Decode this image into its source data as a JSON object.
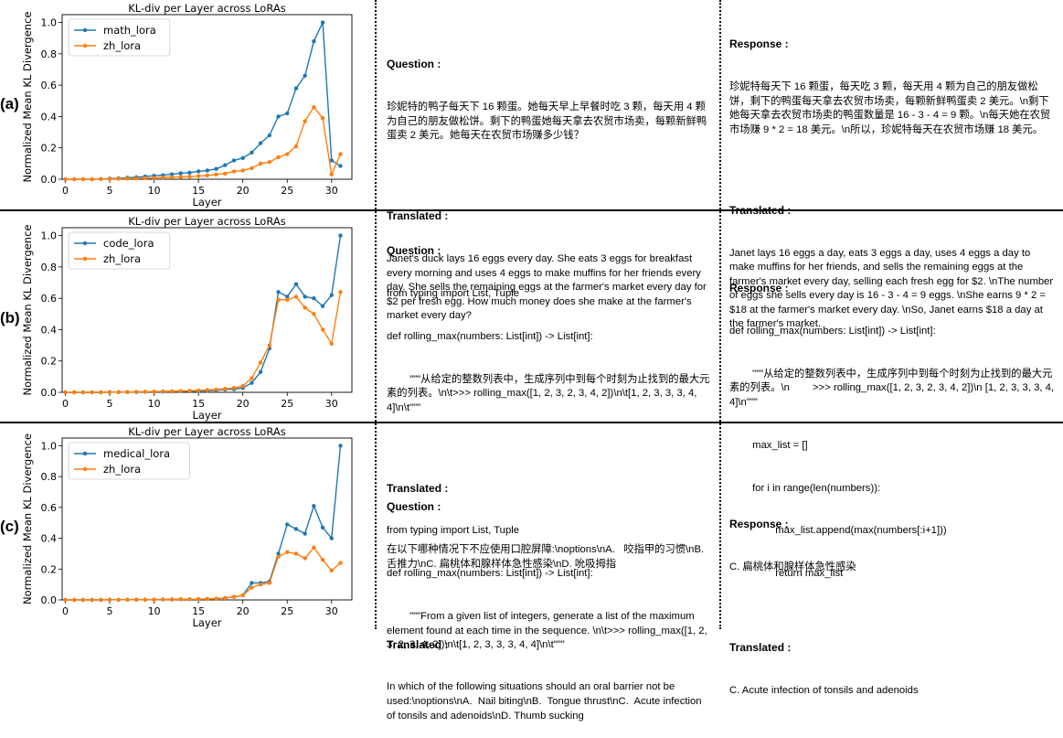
{
  "rows": [
    {
      "label": "(a)",
      "question_header": "Question :",
      "question": "珍妮特的鸭子每天下 16 颗蛋。她每天早上早餐时吃 3 颗，每天用 4 颗为自己的朋友做松饼。剩下的鸭蛋她每天拿去农贸市场卖，每颗新鲜鸭蛋卖 2 美元。她每天在农贸市场赚多少钱？",
      "translated_header": "Translated :",
      "translated_question": "Janet's duck lays 16 eggs every day. She eats 3 eggs for breakfast every morning and uses 4 eggs to make muffins for her friends every day. She sells the remaining eggs at the farmer's market every day for $2 per fresh egg. How much money does she make at the farmer's market every day?",
      "response_header": "Response :",
      "response": "珍妮特每天下 16 颗蛋，每天吃 3 颗，每天用 4 颗为自己的朋友做松饼，剩下的鸭蛋每天拿去农贸市场卖，每颗新鲜鸭蛋卖 2 美元。\\n剩下她每天拿去农贸市场卖的鸭蛋数量是 16 - 3 - 4 = 9 颗。\\n每天她在农贸市场赚 9 * 2 = 18 美元。\\n所以，珍妮特每天在农贸市场赚 18 美元。",
      "response_translated_header": "Translated :",
      "response_translated": "Janet lays 16 eggs a day, eats 3 eggs a day, uses 4 eggs a day to make muffins for her friends, and sells the remaining eggs at the farmer's market every day, selling each fresh egg for $2. \\nThe number of eggs she sells every day is 16 - 3 - 4 = 9 eggs. \\nShe earns 9 * 2 = $18 at the farmer's market every day. \\nSo, Janet earns $18 a day at the farmer's market."
    },
    {
      "label": "(b)",
      "question_header": "Question :",
      "question_lines": [
        "from typing import List, Tuple",
        "def rolling_max(numbers: List[int]) -> List[int]:",
        "        \"\"\"从给定的整数列表中，生成序列中到每个时刻为止找到的最大元素的列表。\\n\\t>>> rolling_max([1, 2, 3, 2, 3, 4, 2])\\n\\t[1, 2, 3, 3, 3, 4, 4]\\n\\t\"\"\""
      ],
      "translated_header": "Translated :",
      "translated_lines": [
        "from typing import List, Tuple",
        "def rolling_max(numbers: List[int]) -> List[int]:",
        "        \"\"\"From a given list of integers, generate a list of the maximum element found at each time in the sequence. \\n\\t>>> rolling_max([1, 2, 3, 2, 3, 4, 2])\\n\\t[1, 2, 3, 3, 3, 4, 4]\\n\\t\"\"\""
      ],
      "response_header": "Response :",
      "response_lines": [
        "def rolling_max(numbers: List[int]) -> List[int]:",
        "        \"\"\"从给定的整数列表中，生成序列中到每个时刻为止找到的最大元素的列表。\\n        >>> rolling_max([1, 2, 3, 2, 3, 4, 2])\\n [1, 2, 3, 3, 3, 4, 4]\\n\"\"\"",
        "        max_list = []",
        "        for i in range(len(numbers)):",
        "                max_list.append(max(numbers[:i+1]))",
        "                return max_list"
      ]
    },
    {
      "label": "(c)",
      "question_header": "Question :",
      "question": "在以下哪种情况下不应使用口腔屏障:\\noptions\\nA.   咬指甲的习惯\\nB. 舌推力\\nC. 扁桃体和腺样体急性感染\\nD. 吮吸拇指",
      "translated_header": "Translated :",
      "translated_question": "In which of the following situations should an oral barrier not be used:\\noptions\\nA.  Nail biting\\nB.  Tongue thrust\\nC.  Acute infection of tonsils and adenoids\\nD. Thumb sucking",
      "response_header": "Response :",
      "response": "C. 扁桃体和腺样体急性感染",
      "response_translated_header": "Translated :",
      "response_translated": "C. Acute infection of tonsils and adenoids"
    }
  ],
  "colors": {
    "blue": "#1f77b4",
    "orange": "#ff7f0e"
  },
  "chart_data": [
    {
      "type": "line",
      "title": "KL-div per Layer across LoRAs",
      "xlabel": "Layer",
      "ylabel": "Normalized Mean KL Divergence",
      "xlim": [
        0,
        32
      ],
      "ylim": [
        0,
        1.05
      ],
      "xticks": [
        0,
        5,
        10,
        15,
        20,
        25,
        30
      ],
      "yticks": [
        0.0,
        0.2,
        0.4,
        0.6,
        0.8,
        1.0
      ],
      "legend": "top-left",
      "x": [
        0,
        1,
        2,
        3,
        4,
        5,
        6,
        7,
        8,
        9,
        10,
        11,
        12,
        13,
        14,
        15,
        16,
        17,
        18,
        19,
        20,
        21,
        22,
        23,
        24,
        25,
        26,
        27,
        28,
        29,
        30,
        31
      ],
      "series": [
        {
          "name": "math_lora",
          "color": "#1f77b4",
          "values": [
            0,
            0,
            0,
            0,
            0.002,
            0.004,
            0.006,
            0.01,
            0.013,
            0.018,
            0.022,
            0.026,
            0.032,
            0.038,
            0.042,
            0.05,
            0.056,
            0.066,
            0.09,
            0.12,
            0.135,
            0.17,
            0.23,
            0.28,
            0.4,
            0.42,
            0.58,
            0.66,
            0.88,
            1.0,
            0.12,
            0.085
          ]
        },
        {
          "name": "zh_lora",
          "color": "#ff7f0e",
          "values": [
            0,
            0,
            0,
            0,
            0.001,
            0.002,
            0.003,
            0.004,
            0.005,
            0.007,
            0.009,
            0.011,
            0.013,
            0.015,
            0.017,
            0.02,
            0.024,
            0.03,
            0.036,
            0.05,
            0.056,
            0.07,
            0.1,
            0.11,
            0.14,
            0.16,
            0.21,
            0.37,
            0.46,
            0.39,
            0.03,
            0.16
          ]
        }
      ]
    },
    {
      "type": "line",
      "title": "KL-div per Layer across LoRAs",
      "xlabel": "Layer",
      "ylabel": "Normalized Mean KL Divergence",
      "xlim": [
        0,
        32
      ],
      "ylim": [
        0,
        1.05
      ],
      "xticks": [
        0,
        5,
        10,
        15,
        20,
        25,
        30
      ],
      "yticks": [
        0.0,
        0.2,
        0.4,
        0.6,
        0.8,
        1.0
      ],
      "legend": "top-left",
      "x": [
        0,
        1,
        2,
        3,
        4,
        5,
        6,
        7,
        8,
        9,
        10,
        11,
        12,
        13,
        14,
        15,
        16,
        17,
        18,
        19,
        20,
        21,
        22,
        23,
        24,
        25,
        26,
        27,
        28,
        29,
        30,
        31
      ],
      "series": [
        {
          "name": "code_lora",
          "color": "#1f77b4",
          "values": [
            0,
            0,
            0,
            0,
            0,
            0.001,
            0.001,
            0.002,
            0.002,
            0.003,
            0.003,
            0.004,
            0.005,
            0.006,
            0.007,
            0.008,
            0.01,
            0.013,
            0.018,
            0.02,
            0.028,
            0.06,
            0.13,
            0.28,
            0.64,
            0.61,
            0.69,
            0.61,
            0.6,
            0.55,
            0.62,
            1.0
          ]
        },
        {
          "name": "zh_lora",
          "color": "#ff7f0e",
          "values": [
            0,
            0,
            0,
            0,
            0,
            0.001,
            0.001,
            0.002,
            0.003,
            0.004,
            0.005,
            0.006,
            0.007,
            0.008,
            0.01,
            0.012,
            0.015,
            0.018,
            0.022,
            0.028,
            0.04,
            0.09,
            0.19,
            0.3,
            0.59,
            0.59,
            0.61,
            0.54,
            0.5,
            0.4,
            0.31,
            0.64
          ]
        }
      ]
    },
    {
      "type": "line",
      "title": "KL-div per Layer across LoRAs",
      "xlabel": "Layer",
      "ylabel": "Normalized Mean KL Divergence",
      "xlim": [
        0,
        32
      ],
      "ylim": [
        0,
        1.05
      ],
      "xticks": [
        0,
        5,
        10,
        15,
        20,
        25,
        30
      ],
      "yticks": [
        0.0,
        0.2,
        0.4,
        0.6,
        0.8,
        1.0
      ],
      "legend": "top-left",
      "x": [
        0,
        1,
        2,
        3,
        4,
        5,
        6,
        7,
        8,
        9,
        10,
        11,
        12,
        13,
        14,
        15,
        16,
        17,
        18,
        19,
        20,
        21,
        22,
        23,
        24,
        25,
        26,
        27,
        28,
        29,
        30,
        31
      ],
      "series": [
        {
          "name": "medical_lora",
          "color": "#1f77b4",
          "values": [
            0,
            0,
            0,
            0,
            0,
            0.001,
            0.001,
            0.001,
            0.002,
            0.002,
            0.002,
            0.003,
            0.003,
            0.004,
            0.004,
            0.005,
            0.006,
            0.008,
            0.012,
            0.02,
            0.03,
            0.11,
            0.11,
            0.12,
            0.3,
            0.49,
            0.46,
            0.43,
            0.61,
            0.47,
            0.4,
            1.0
          ]
        },
        {
          "name": "zh_lora",
          "color": "#ff7f0e",
          "values": [
            0,
            0,
            0,
            0,
            0,
            0.001,
            0.001,
            0.001,
            0.002,
            0.002,
            0.002,
            0.003,
            0.003,
            0.004,
            0.004,
            0.005,
            0.006,
            0.008,
            0.012,
            0.02,
            0.03,
            0.08,
            0.1,
            0.11,
            0.28,
            0.31,
            0.3,
            0.27,
            0.34,
            0.26,
            0.19,
            0.24
          ]
        }
      ]
    }
  ]
}
